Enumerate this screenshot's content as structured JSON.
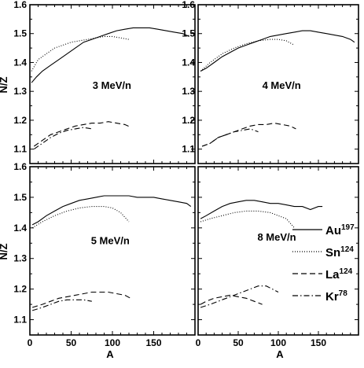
{
  "figure": {
    "y_axis_label": "N/Z",
    "x_axis_label": "A"
  },
  "legend": [
    {
      "name": "Au",
      "mass": "197",
      "style": "solid"
    },
    {
      "name": "Sn",
      "mass": "124",
      "style": "dotted"
    },
    {
      "name": "La",
      "mass": "124",
      "style": "dashed"
    },
    {
      "name": "Kr",
      "mass": "78",
      "style": "dashdot"
    }
  ],
  "styles": {
    "line_color": "#000000",
    "background": "#ffffff"
  },
  "chart_data": [
    {
      "type": "line",
      "panel": "top-left",
      "annotation": "3 MeV/n",
      "xlim": [
        0,
        200
      ],
      "ylim": [
        1.05,
        1.6
      ],
      "x_ticks": [],
      "y_ticks": [
        1.1,
        1.2,
        1.3,
        1.4,
        1.5,
        1.6
      ],
      "series": [
        {
          "name": "Au197",
          "style": "solid",
          "x": [
            2,
            8,
            15,
            25,
            35,
            45,
            55,
            65,
            75,
            85,
            95,
            105,
            115,
            125,
            135,
            145,
            155,
            165,
            175,
            185,
            193
          ],
          "y": [
            1.33,
            1.35,
            1.37,
            1.39,
            1.41,
            1.43,
            1.45,
            1.47,
            1.48,
            1.49,
            1.5,
            1.51,
            1.515,
            1.52,
            1.52,
            1.52,
            1.515,
            1.51,
            1.505,
            1.5,
            1.49
          ]
        },
        {
          "name": "Sn124",
          "style": "dotted",
          "x": [
            2,
            10,
            20,
            30,
            40,
            50,
            60,
            70,
            80,
            90,
            100,
            110,
            120
          ],
          "y": [
            1.37,
            1.41,
            1.43,
            1.45,
            1.46,
            1.47,
            1.475,
            1.48,
            1.485,
            1.49,
            1.49,
            1.485,
            1.48
          ]
        },
        {
          "name": "La124",
          "style": "dashed",
          "x": [
            5,
            15,
            25,
            35,
            45,
            55,
            65,
            75,
            85,
            95,
            105,
            115,
            123
          ],
          "y": [
            1.11,
            1.13,
            1.15,
            1.16,
            1.17,
            1.18,
            1.185,
            1.19,
            1.19,
            1.195,
            1.19,
            1.185,
            1.175
          ]
        },
        {
          "name": "Kr78",
          "style": "dashdot",
          "x": [
            5,
            15,
            25,
            35,
            45,
            55,
            65,
            75
          ],
          "y": [
            1.1,
            1.12,
            1.14,
            1.155,
            1.165,
            1.17,
            1.175,
            1.17
          ]
        }
      ]
    },
    {
      "type": "line",
      "panel": "top-right",
      "annotation": "4 MeV/n",
      "xlim": [
        0,
        200
      ],
      "ylim": [
        1.05,
        1.6
      ],
      "x_ticks": [],
      "y_ticks": [
        1.1,
        1.2,
        1.3,
        1.4,
        1.5,
        1.6
      ],
      "series": [
        {
          "name": "Au197",
          "style": "solid",
          "x": [
            3,
            10,
            20,
            30,
            40,
            50,
            60,
            70,
            80,
            90,
            100,
            110,
            120,
            130,
            140,
            150,
            160,
            170,
            180,
            190,
            195
          ],
          "y": [
            1.37,
            1.38,
            1.4,
            1.42,
            1.435,
            1.45,
            1.46,
            1.47,
            1.48,
            1.49,
            1.495,
            1.5,
            1.505,
            1.51,
            1.51,
            1.505,
            1.5,
            1.495,
            1.49,
            1.48,
            1.47
          ]
        },
        {
          "name": "Sn124",
          "style": "dotted",
          "x": [
            3,
            15,
            30,
            45,
            60,
            75,
            90,
            100,
            110,
            120
          ],
          "y": [
            1.37,
            1.4,
            1.43,
            1.45,
            1.465,
            1.475,
            1.48,
            1.48,
            1.475,
            1.46
          ]
        },
        {
          "name": "La124",
          "style": "dashed",
          "x": [
            5,
            15,
            25,
            35,
            45,
            55,
            65,
            75,
            85,
            95,
            105,
            115,
            122
          ],
          "y": [
            1.11,
            1.12,
            1.14,
            1.15,
            1.16,
            1.17,
            1.18,
            1.185,
            1.185,
            1.19,
            1.185,
            1.18,
            1.17
          ]
        },
        {
          "name": "Kr78",
          "style": "dashdot",
          "x": [
            5,
            15,
            25,
            35,
            45,
            55,
            65,
            75
          ],
          "y": [
            1.11,
            1.12,
            1.14,
            1.15,
            1.16,
            1.165,
            1.17,
            1.16
          ]
        }
      ]
    },
    {
      "type": "line",
      "panel": "bottom-left",
      "annotation": "5 MeV/n",
      "xlim": [
        0,
        200
      ],
      "ylim": [
        1.05,
        1.6
      ],
      "x_ticks": [
        0,
        50,
        100,
        150
      ],
      "y_ticks": [
        1.1,
        1.2,
        1.3,
        1.4,
        1.5,
        1.6
      ],
      "series": [
        {
          "name": "Au197",
          "style": "solid",
          "x": [
            3,
            10,
            20,
            30,
            40,
            50,
            60,
            70,
            80,
            90,
            100,
            110,
            120,
            130,
            140,
            150,
            160,
            170,
            180,
            190,
            195
          ],
          "y": [
            1.41,
            1.42,
            1.44,
            1.455,
            1.47,
            1.48,
            1.49,
            1.495,
            1.5,
            1.505,
            1.505,
            1.505,
            1.505,
            1.5,
            1.5,
            1.5,
            1.495,
            1.49,
            1.485,
            1.48,
            1.47
          ]
        },
        {
          "name": "Sn124",
          "style": "dotted",
          "x": [
            3,
            15,
            30,
            45,
            60,
            75,
            90,
            100,
            110,
            120
          ],
          "y": [
            1.4,
            1.42,
            1.44,
            1.455,
            1.465,
            1.47,
            1.47,
            1.465,
            1.45,
            1.42
          ]
        },
        {
          "name": "La124",
          "style": "dashed",
          "x": [
            3,
            15,
            25,
            35,
            45,
            55,
            65,
            75,
            85,
            95,
            105,
            115,
            122
          ],
          "y": [
            1.14,
            1.15,
            1.16,
            1.17,
            1.175,
            1.18,
            1.185,
            1.19,
            1.19,
            1.19,
            1.185,
            1.18,
            1.17
          ]
        },
        {
          "name": "Kr78",
          "style": "dashdot",
          "x": [
            3,
            15,
            25,
            35,
            45,
            55,
            65,
            75
          ],
          "y": [
            1.13,
            1.14,
            1.15,
            1.16,
            1.165,
            1.165,
            1.165,
            1.16
          ]
        }
      ]
    },
    {
      "type": "line",
      "panel": "bottom-right",
      "annotation": "8 MeV/n",
      "xlim": [
        0,
        200
      ],
      "ylim": [
        1.05,
        1.6
      ],
      "x_ticks": [
        0,
        50,
        100,
        150
      ],
      "y_ticks": [],
      "series": [
        {
          "name": "Au197",
          "style": "solid",
          "x": [
            3,
            10,
            20,
            30,
            40,
            50,
            60,
            70,
            80,
            90,
            100,
            110,
            120,
            130,
            140,
            150,
            155
          ],
          "y": [
            1.43,
            1.44,
            1.455,
            1.47,
            1.48,
            1.485,
            1.49,
            1.49,
            1.485,
            1.48,
            1.48,
            1.475,
            1.47,
            1.47,
            1.46,
            1.47,
            1.47
          ]
        },
        {
          "name": "Sn124",
          "style": "dotted",
          "x": [
            3,
            15,
            30,
            45,
            60,
            75,
            90,
            100,
            110,
            120
          ],
          "y": [
            1.42,
            1.43,
            1.44,
            1.45,
            1.455,
            1.455,
            1.45,
            1.44,
            1.43,
            1.4
          ]
        },
        {
          "name": "La124",
          "style": "dashed",
          "x": [
            3,
            10,
            20,
            30,
            40,
            50,
            60,
            70,
            80
          ],
          "y": [
            1.15,
            1.16,
            1.17,
            1.175,
            1.18,
            1.175,
            1.17,
            1.16,
            1.15
          ]
        },
        {
          "name": "Kr78",
          "style": "dashdot",
          "x": [
            3,
            15,
            25,
            35,
            45,
            55,
            65,
            75,
            85,
            100
          ],
          "y": [
            1.14,
            1.15,
            1.16,
            1.17,
            1.18,
            1.19,
            1.2,
            1.21,
            1.21,
            1.19
          ]
        }
      ]
    }
  ]
}
